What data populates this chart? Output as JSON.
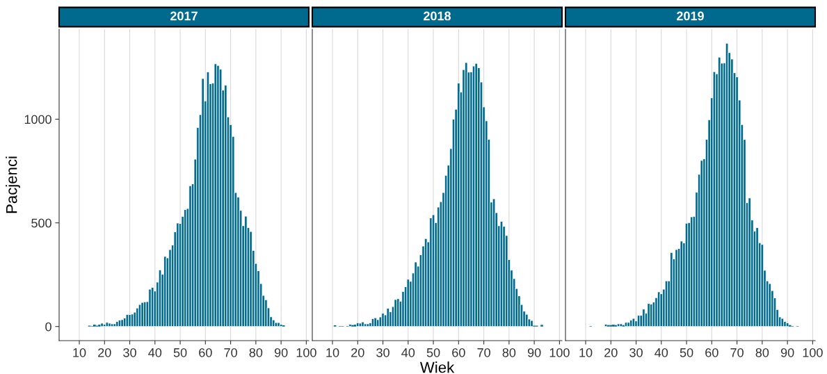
{
  "chart_data": [
    {
      "type": "histogram",
      "title": "2017",
      "ylabel": "Pacjenci",
      "color": "#006b8f",
      "xlim": [
        2,
        101
      ],
      "xticks": [
        10,
        20,
        30,
        40,
        50,
        60,
        70,
        80,
        90,
        100
      ],
      "ylim": [
        -68,
        1434
      ],
      "yticks": [
        0,
        500,
        1000
      ],
      "grid": "x",
      "bins": [
        13.5,
        14.5,
        15.5,
        16.5,
        17.5,
        18.5,
        19.5,
        20.5,
        21.5,
        22.5,
        23.5,
        24.5,
        25.5,
        26.5,
        27.5,
        28.5,
        29.5,
        30.5,
        31.5,
        32.5,
        33.5,
        34.5,
        35.5,
        36.5,
        37.5,
        38.5,
        39.5,
        40.5,
        41.5,
        42.5,
        43.5,
        44.5,
        45.5,
        46.5,
        47.5,
        48.5,
        49.5,
        50.5,
        51.5,
        52.5,
        53.5,
        54.5,
        55.5,
        56.5,
        57.5,
        58.5,
        59.5,
        60.5,
        61.5,
        62.5,
        63.5,
        64.5,
        65.5,
        66.5,
        67.5,
        68.5,
        69.5,
        70.5,
        71.5,
        72.5,
        73.5,
        74.5,
        75.5,
        76.5,
        77.5,
        78.5,
        79.5,
        80.5,
        81.5,
        82.5,
        83.5,
        84.5,
        85.5,
        86.5,
        87.5,
        88.5,
        89.5,
        90.5,
        91.5
      ],
      "values": [
        4,
        2,
        9,
        4,
        9,
        16,
        11,
        20,
        16,
        13,
        13,
        24,
        31,
        33,
        41,
        58,
        58,
        60,
        69,
        89,
        106,
        116,
        119,
        120,
        180,
        189,
        171,
        214,
        273,
        252,
        338,
        331,
        371,
        393,
        457,
        499,
        497,
        531,
        564,
        569,
        679,
        688,
        807,
        960,
        1022,
        1196,
        1088,
        1228,
        1171,
        1174,
        1267,
        1259,
        1241,
        1140,
        1164,
        1011,
        974,
        917,
        646,
        624,
        560,
        486,
        532,
        477,
        458,
        367,
        304,
        269,
        207,
        150,
        129,
        90,
        47,
        32,
        19,
        19,
        11,
        6
      ]
    },
    {
      "type": "histogram",
      "title": "2018",
      "xlabel": "Wiek",
      "color": "#006b8f",
      "xlim": [
        2,
        101
      ],
      "xticks": [
        10,
        20,
        30,
        40,
        50,
        60,
        70,
        80,
        90,
        100
      ],
      "ylim": [
        -68,
        1434
      ],
      "yticks": [
        0,
        500,
        1000
      ],
      "grid": "x",
      "tick_labels": "x",
      "bins": [
        10.5,
        11.5,
        12.5,
        13.5,
        14.5,
        15.5,
        16.5,
        17.5,
        18.5,
        19.5,
        20.5,
        21.5,
        22.5,
        23.5,
        24.5,
        25.5,
        26.5,
        27.5,
        28.5,
        29.5,
        30.5,
        31.5,
        32.5,
        33.5,
        34.5,
        35.5,
        36.5,
        37.5,
        38.5,
        39.5,
        40.5,
        41.5,
        42.5,
        43.5,
        44.5,
        45.5,
        46.5,
        47.5,
        48.5,
        49.5,
        50.5,
        51.5,
        52.5,
        53.5,
        54.5,
        55.5,
        56.5,
        57.5,
        58.5,
        59.5,
        60.5,
        61.5,
        62.5,
        63.5,
        64.5,
        65.5,
        66.5,
        67.5,
        68.5,
        69.5,
        70.5,
        71.5,
        72.5,
        73.5,
        74.5,
        75.5,
        76.5,
        77.5,
        78.5,
        79.5,
        80.5,
        81.5,
        82.5,
        83.5,
        84.5,
        85.5,
        86.5,
        87.5,
        88.5,
        89.5,
        90.5,
        91.5,
        92.5,
        93.5
      ],
      "values": [
        6,
        0,
        2,
        2,
        0,
        2,
        11,
        7,
        9,
        18,
        16,
        22,
        13,
        13,
        18,
        38,
        42,
        33,
        46,
        64,
        56,
        88,
        71,
        96,
        130,
        134,
        122,
        169,
        192,
        228,
        218,
        258,
        311,
        291,
        346,
        388,
        424,
        408,
        524,
        539,
        501,
        576,
        602,
        646,
        729,
        778,
        858,
        1000,
        1048,
        1174,
        1131,
        1239,
        1273,
        1227,
        1228,
        1256,
        1269,
        1248,
        1179,
        1059,
        992,
        903,
        600,
        616,
        549,
        486,
        507,
        483,
        439,
        323,
        272,
        231,
        183,
        148,
        106,
        74,
        59,
        36,
        29,
        4,
        4,
        0,
        8
      ]
    },
    {
      "type": "histogram",
      "title": "2019",
      "color": "#006b8f",
      "xlim": [
        2,
        101
      ],
      "xticks": [
        10,
        20,
        30,
        40,
        50,
        60,
        70,
        80,
        90,
        100
      ],
      "ylim": [
        -68,
        1434
      ],
      "yticks": [
        0,
        500,
        1000
      ],
      "grid": "x",
      "tick_labels": "x",
      "bins": [
        11.5,
        12.5,
        13.5,
        14.5,
        15.5,
        16.5,
        17.5,
        18.5,
        19.5,
        20.5,
        21.5,
        22.5,
        23.5,
        24.5,
        25.5,
        26.5,
        27.5,
        28.5,
        29.5,
        30.5,
        31.5,
        32.5,
        33.5,
        34.5,
        35.5,
        36.5,
        37.5,
        38.5,
        39.5,
        40.5,
        41.5,
        42.5,
        43.5,
        44.5,
        45.5,
        46.5,
        47.5,
        48.5,
        49.5,
        50.5,
        51.5,
        52.5,
        53.5,
        54.5,
        55.5,
        56.5,
        57.5,
        58.5,
        59.5,
        60.5,
        61.5,
        62.5,
        63.5,
        64.5,
        65.5,
        66.5,
        67.5,
        68.5,
        69.5,
        70.5,
        71.5,
        72.5,
        73.5,
        74.5,
        75.5,
        76.5,
        77.5,
        78.5,
        79.5,
        80.5,
        81.5,
        82.5,
        83.5,
        84.5,
        85.5,
        86.5,
        87.5,
        88.5,
        89.5,
        90.5,
        91.5,
        92.5,
        93.5,
        94.5
      ],
      "values": [
        2,
        0,
        0,
        0,
        0,
        0,
        11,
        7,
        7,
        9,
        7,
        13,
        13,
        7,
        20,
        20,
        31,
        39,
        27,
        54,
        54,
        84,
        64,
        111,
        108,
        118,
        139,
        167,
        158,
        180,
        220,
        220,
        357,
        326,
        371,
        376,
        412,
        403,
        498,
        501,
        529,
        531,
        648,
        734,
        801,
        809,
        903,
        997,
        1103,
        1229,
        1219,
        1299,
        1270,
        1271,
        1366,
        1321,
        1290,
        1224,
        1204,
        1092,
        974,
        902,
        597,
        620,
        514,
        460,
        477,
        404,
        396,
        271,
        220,
        207,
        173,
        138,
        82,
        46,
        39,
        24,
        18,
        7,
        2,
        0,
        2
      ]
    }
  ]
}
